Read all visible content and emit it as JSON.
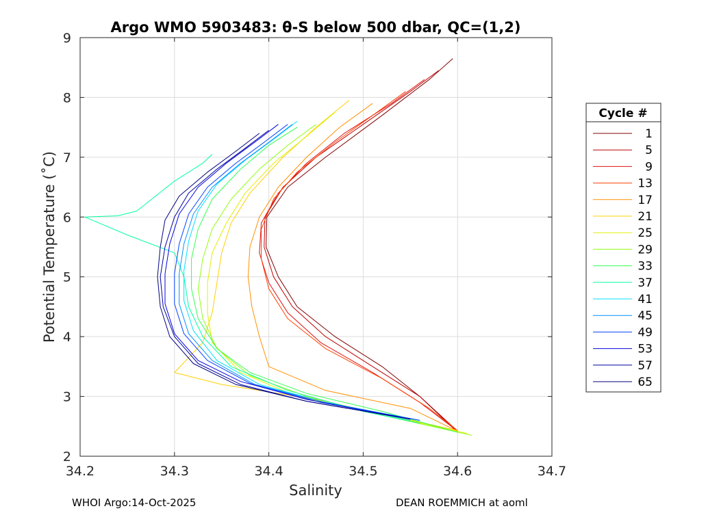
{
  "chart_data": {
    "type": "line",
    "title": "Argo WMO 5903483: θ-S below 500 dbar,  QC=(1,2)",
    "xlabel": "Salinity",
    "ylabel": "Potential Temperature (˚C)",
    "xlim": [
      34.2,
      34.7
    ],
    "ylim": [
      2,
      9
    ],
    "xticks": [
      "34.2",
      "34.3",
      "34.4",
      "34.5",
      "34.6",
      "34.7"
    ],
    "yticks": [
      "2",
      "3",
      "4",
      "5",
      "6",
      "7",
      "8",
      "9"
    ],
    "grid": true,
    "legend": {
      "title": "Cycle #",
      "placement": "right-outside",
      "entries": [
        {
          "label": "1",
          "color": "#800000"
        },
        {
          "label": "5",
          "color": "#c00000"
        },
        {
          "label": "9",
          "color": "#e01010"
        },
        {
          "label": "13",
          "color": "#ff4000"
        },
        {
          "label": "17",
          "color": "#ff9000"
        },
        {
          "label": "21",
          "color": "#ffd000"
        },
        {
          "label": "25",
          "color": "#e0f000"
        },
        {
          "label": "29",
          "color": "#90ff10"
        },
        {
          "label": "33",
          "color": "#30ff50"
        },
        {
          "label": "37",
          "color": "#00ffa0"
        },
        {
          "label": "41",
          "color": "#00e0ff"
        },
        {
          "label": "45",
          "color": "#0090ff"
        },
        {
          "label": "49",
          "color": "#0040ff"
        },
        {
          "label": "53",
          "color": "#0000e0"
        },
        {
          "label": "57",
          "color": "#0000a0"
        },
        {
          "label": "65",
          "color": "#000080"
        }
      ]
    },
    "series": [
      {
        "name": "1",
        "color": "#800000",
        "points": [
          [
            34.595,
            8.65
          ],
          [
            34.57,
            8.3
          ],
          [
            34.52,
            7.7
          ],
          [
            34.46,
            7.0
          ],
          [
            34.42,
            6.5
          ],
          [
            34.398,
            6.0
          ],
          [
            34.397,
            5.5
          ],
          [
            34.41,
            5.0
          ],
          [
            34.43,
            4.5
          ],
          [
            34.47,
            4.0
          ],
          [
            34.52,
            3.5
          ],
          [
            34.56,
            3.0
          ],
          [
            34.6,
            2.4
          ]
        ]
      },
      {
        "name": "5",
        "color": "#c00000",
        "points": [
          [
            34.58,
            8.45
          ],
          [
            34.55,
            8.1
          ],
          [
            34.5,
            7.55
          ],
          [
            34.45,
            7.0
          ],
          [
            34.415,
            6.5
          ],
          [
            34.396,
            6.0
          ],
          [
            34.395,
            5.5
          ],
          [
            34.405,
            5.0
          ],
          [
            34.425,
            4.5
          ],
          [
            34.46,
            4.0
          ],
          [
            34.51,
            3.5
          ],
          [
            34.56,
            3.0
          ],
          [
            34.6,
            2.42
          ]
        ]
      },
      {
        "name": "9",
        "color": "#e01010",
        "points": [
          [
            34.565,
            8.3
          ],
          [
            34.53,
            7.9
          ],
          [
            34.48,
            7.4
          ],
          [
            34.44,
            6.9
          ],
          [
            34.41,
            6.4
          ],
          [
            34.392,
            5.9
          ],
          [
            34.39,
            5.4
          ],
          [
            34.4,
            4.9
          ],
          [
            34.42,
            4.4
          ],
          [
            34.455,
            3.9
          ],
          [
            34.51,
            3.4
          ],
          [
            34.56,
            2.9
          ],
          [
            34.6,
            2.42
          ]
        ]
      },
      {
        "name": "13",
        "color": "#ff4000",
        "points": [
          [
            34.545,
            8.1
          ],
          [
            34.51,
            7.7
          ],
          [
            34.47,
            7.25
          ],
          [
            34.43,
            6.75
          ],
          [
            34.405,
            6.3
          ],
          [
            34.392,
            5.8
          ],
          [
            34.392,
            5.3
          ],
          [
            34.4,
            4.8
          ],
          [
            34.42,
            4.3
          ],
          [
            34.46,
            3.8
          ],
          [
            34.52,
            3.3
          ],
          [
            34.57,
            2.8
          ],
          [
            34.6,
            2.43
          ]
        ]
      },
      {
        "name": "17",
        "color": "#ff9000",
        "points": [
          [
            34.51,
            7.9
          ],
          [
            34.475,
            7.5
          ],
          [
            34.44,
            7.0
          ],
          [
            34.41,
            6.5
          ],
          [
            34.39,
            6.0
          ],
          [
            34.38,
            5.5
          ],
          [
            34.378,
            5.0
          ],
          [
            34.382,
            4.5
          ],
          [
            34.39,
            4.0
          ],
          [
            34.4,
            3.5
          ],
          [
            34.46,
            3.1
          ],
          [
            34.55,
            2.8
          ],
          [
            34.6,
            2.42
          ]
        ]
      },
      {
        "name": "21",
        "color": "#ffd000",
        "points": [
          [
            34.485,
            7.95
          ],
          [
            34.45,
            7.5
          ],
          [
            34.415,
            7.0
          ],
          [
            34.38,
            6.4
          ],
          [
            34.36,
            5.9
          ],
          [
            34.35,
            5.4
          ],
          [
            34.345,
            4.9
          ],
          [
            34.34,
            4.4
          ],
          [
            34.33,
            3.9
          ],
          [
            34.3,
            3.4
          ],
          [
            34.35,
            3.2
          ],
          [
            34.45,
            2.95
          ],
          [
            34.6,
            2.43
          ]
        ]
      },
      {
        "name": "25",
        "color": "#e0f000",
        "points": [
          [
            34.47,
            7.75
          ],
          [
            34.44,
            7.35
          ],
          [
            34.405,
            6.9
          ],
          [
            34.375,
            6.4
          ],
          [
            34.355,
            5.9
          ],
          [
            34.34,
            5.4
          ],
          [
            34.335,
            4.9
          ],
          [
            34.335,
            4.4
          ],
          [
            34.34,
            3.9
          ],
          [
            34.37,
            3.4
          ],
          [
            34.43,
            3.0
          ],
          [
            34.52,
            2.7
          ],
          [
            34.61,
            2.38
          ]
        ]
      },
      {
        "name": "29",
        "color": "#90ff10",
        "points": [
          [
            34.45,
            7.55
          ],
          [
            34.42,
            7.2
          ],
          [
            34.39,
            6.8
          ],
          [
            34.36,
            6.3
          ],
          [
            34.34,
            5.8
          ],
          [
            34.33,
            5.3
          ],
          [
            34.325,
            4.8
          ],
          [
            34.33,
            4.3
          ],
          [
            34.345,
            3.8
          ],
          [
            34.38,
            3.35
          ],
          [
            34.44,
            3.0
          ],
          [
            34.53,
            2.65
          ],
          [
            34.615,
            2.35
          ]
        ]
      },
      {
        "name": "33",
        "color": "#30ff50",
        "points": [
          [
            34.43,
            7.5
          ],
          [
            34.4,
            7.2
          ],
          [
            34.37,
            6.8
          ],
          [
            34.34,
            6.3
          ],
          [
            34.325,
            5.8
          ],
          [
            34.318,
            5.3
          ],
          [
            34.318,
            4.8
          ],
          [
            34.325,
            4.3
          ],
          [
            34.345,
            3.8
          ],
          [
            34.38,
            3.4
          ],
          [
            34.44,
            3.05
          ],
          [
            34.52,
            2.75
          ],
          [
            34.6,
            2.4
          ]
        ]
      },
      {
        "name": "37",
        "color": "#00ffa0",
        "points": [
          [
            34.34,
            7.05
          ],
          [
            34.33,
            6.9
          ],
          [
            34.3,
            6.6
          ],
          [
            34.26,
            6.1
          ],
          [
            34.24,
            6.02
          ],
          [
            34.205,
            6.0
          ],
          [
            34.25,
            5.7
          ],
          [
            34.3,
            5.4
          ],
          [
            34.31,
            5.0
          ],
          [
            34.315,
            4.5
          ],
          [
            34.33,
            4.0
          ],
          [
            34.36,
            3.5
          ],
          [
            34.42,
            3.1
          ],
          [
            34.5,
            2.75
          ],
          [
            34.56,
            2.55
          ]
        ]
      },
      {
        "name": "41",
        "color": "#00e0ff",
        "points": [
          [
            34.43,
            7.6
          ],
          [
            34.405,
            7.3
          ],
          [
            34.375,
            6.95
          ],
          [
            34.345,
            6.55
          ],
          [
            34.325,
            6.1
          ],
          [
            34.315,
            5.6
          ],
          [
            34.31,
            5.1
          ],
          [
            34.31,
            4.6
          ],
          [
            34.32,
            4.1
          ],
          [
            34.345,
            3.6
          ],
          [
            34.39,
            3.2
          ],
          [
            34.46,
            2.9
          ],
          [
            34.55,
            2.6
          ]
        ]
      },
      {
        "name": "45",
        "color": "#0090ff",
        "points": [
          [
            34.425,
            7.55
          ],
          [
            34.4,
            7.25
          ],
          [
            34.37,
            6.9
          ],
          [
            34.34,
            6.5
          ],
          [
            34.32,
            6.05
          ],
          [
            34.31,
            5.55
          ],
          [
            34.305,
            5.05
          ],
          [
            34.305,
            4.55
          ],
          [
            34.315,
            4.05
          ],
          [
            34.34,
            3.6
          ],
          [
            34.385,
            3.2
          ],
          [
            34.46,
            2.9
          ],
          [
            34.56,
            2.6
          ]
        ]
      },
      {
        "name": "49",
        "color": "#0040ff",
        "points": [
          [
            34.42,
            7.55
          ],
          [
            34.395,
            7.25
          ],
          [
            34.365,
            6.9
          ],
          [
            34.335,
            6.5
          ],
          [
            34.315,
            6.05
          ],
          [
            34.305,
            5.55
          ],
          [
            34.3,
            5.05
          ],
          [
            34.3,
            4.55
          ],
          [
            34.31,
            4.05
          ],
          [
            34.335,
            3.6
          ],
          [
            34.38,
            3.22
          ],
          [
            34.455,
            2.9
          ],
          [
            34.56,
            2.6
          ]
        ]
      },
      {
        "name": "53",
        "color": "#0000e0",
        "points": [
          [
            34.41,
            7.55
          ],
          [
            34.385,
            7.25
          ],
          [
            34.355,
            6.9
          ],
          [
            34.325,
            6.5
          ],
          [
            34.305,
            6.05
          ],
          [
            34.295,
            5.55
          ],
          [
            34.29,
            5.05
          ],
          [
            34.29,
            4.55
          ],
          [
            34.3,
            4.05
          ],
          [
            34.325,
            3.6
          ],
          [
            34.37,
            3.25
          ],
          [
            34.44,
            2.95
          ],
          [
            34.55,
            2.62
          ]
        ]
      },
      {
        "name": "57",
        "color": "#0000a0",
        "points": [
          [
            34.4,
            7.45
          ],
          [
            34.375,
            7.15
          ],
          [
            34.345,
            6.8
          ],
          [
            34.315,
            6.4
          ],
          [
            34.3,
            6.0
          ],
          [
            34.29,
            5.5
          ],
          [
            34.285,
            5.0
          ],
          [
            34.288,
            4.5
          ],
          [
            34.3,
            4.0
          ],
          [
            34.325,
            3.55
          ],
          [
            34.37,
            3.2
          ],
          [
            34.44,
            2.92
          ],
          [
            34.55,
            2.62
          ]
        ]
      },
      {
        "name": "65",
        "color": "#000080",
        "points": [
          [
            34.39,
            7.4
          ],
          [
            34.365,
            7.1
          ],
          [
            34.335,
            6.75
          ],
          [
            34.305,
            6.35
          ],
          [
            34.29,
            5.95
          ],
          [
            34.285,
            5.5
          ],
          [
            34.282,
            5.0
          ],
          [
            34.285,
            4.5
          ],
          [
            34.295,
            4.0
          ],
          [
            34.32,
            3.55
          ],
          [
            34.365,
            3.2
          ],
          [
            34.44,
            2.92
          ],
          [
            34.55,
            2.62
          ]
        ]
      }
    ]
  },
  "footer": {
    "left": "WHOI Argo:14-Oct-2025",
    "right": "DEAN ROEMMICH at aoml"
  }
}
